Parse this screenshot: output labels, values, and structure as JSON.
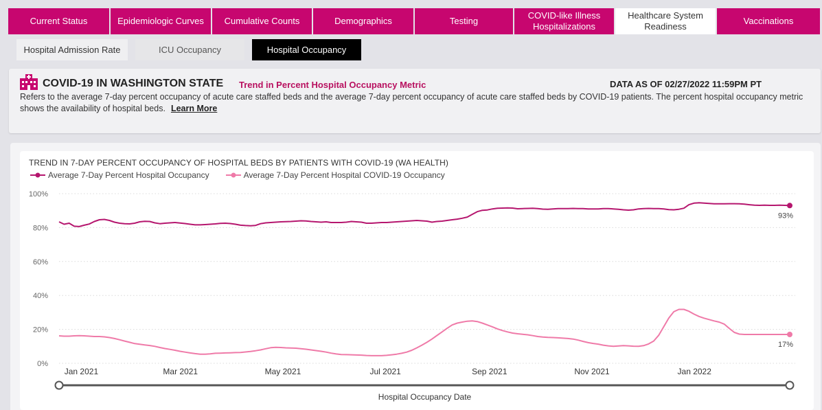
{
  "tabs": [
    {
      "label": "Current Status"
    },
    {
      "label": "Epidemiologic Curves"
    },
    {
      "label": "Cumulative Counts"
    },
    {
      "label": "Demographics"
    },
    {
      "label": "Testing"
    },
    {
      "label": "COVID-like Illness Hospitalizations"
    },
    {
      "label": "Healthcare System Readiness"
    },
    {
      "label": "Vaccinations"
    }
  ],
  "subtabs": [
    {
      "label": "Hospital Admission Rate"
    },
    {
      "label": "ICU Occupancy"
    },
    {
      "label": "Hospital Occupancy"
    }
  ],
  "info": {
    "title": "COVID-19 IN WASHINGTON STATE",
    "subtitle": "Trend in Percent Hospital Occupancy Metric",
    "data_as_of": "DATA AS OF 02/27/2022 11:59PM PT",
    "description": "Refers to the average 7-day percent occupancy of acute care staffed beds and the average 7-day percent occupancy of acute care staffed beds by COVID-19 patients. The percent hospital occupancy metric shows the availability of hospital beds.",
    "learn_more": "Learn More"
  },
  "colors": {
    "accent": "#c7066f",
    "series_total": "#b5166e",
    "series_covid": "#ef7aa8"
  },
  "chart_data": {
    "type": "line",
    "title": "TREND IN 7-DAY PERCENT OCCUPANCY OF HOSPITAL BEDS BY PATIENTS WITH COVID-19 (WA HEALTH)",
    "xlabel": "Hospital Occupancy Date",
    "ylabel": "",
    "ylim": [
      0,
      100
    ],
    "ytick_labels": [
      "0%",
      "20%",
      "40%",
      "60%",
      "80%",
      "100%"
    ],
    "yticks": [
      0,
      20,
      40,
      60,
      80,
      100
    ],
    "x_range_days": [
      0,
      435
    ],
    "xtick_labels": [
      "Jan 2021",
      "Mar 2021",
      "May 2021",
      "Jul 2021",
      "Sep 2021",
      "Nov 2021",
      "Jan 2022"
    ],
    "xticks_days": [
      10,
      69,
      130,
      191,
      253,
      314,
      375
    ],
    "end_labels": {
      "total": "93%",
      "covid": "17%"
    },
    "series": [
      {
        "name": "Average 7-Day Percent Hospital Occupancy",
        "key": "total",
        "x": [
          0,
          3,
          6,
          9,
          12,
          15,
          18,
          21,
          24,
          27,
          30,
          33,
          36,
          39,
          42,
          45,
          48,
          51,
          54,
          57,
          60,
          63,
          66,
          69,
          72,
          75,
          78,
          81,
          84,
          87,
          90,
          93,
          96,
          99,
          102,
          105,
          108,
          111,
          114,
          117,
          120,
          123,
          126,
          129,
          132,
          135,
          138,
          141,
          144,
          147,
          150,
          153,
          156,
          159,
          162,
          165,
          168,
          171,
          174,
          177,
          180,
          183,
          186,
          189,
          192,
          195,
          198,
          201,
          204,
          207,
          210,
          213,
          216,
          219,
          222,
          225,
          228,
          231,
          234,
          237,
          240,
          243,
          246,
          249,
          252,
          255,
          258,
          261,
          264,
          267,
          270,
          273,
          276,
          279,
          282,
          285,
          288,
          291,
          294,
          297,
          300,
          303,
          306,
          309,
          312,
          315,
          318,
          321,
          324,
          327,
          330,
          333,
          336,
          339,
          342,
          345,
          348,
          351,
          354,
          357,
          360,
          363,
          366,
          369,
          372,
          375,
          378,
          381,
          384,
          387,
          390,
          393,
          396,
          399,
          402,
          405,
          408,
          411,
          414,
          417,
          420,
          423,
          426,
          429,
          432,
          435
        ],
        "values": [
          83.4,
          82,
          82.6,
          80.8,
          80.6,
          81.4,
          82.1,
          83.6,
          84.6,
          84.8,
          84.2,
          83.2,
          82.6,
          82.3,
          82.2,
          82.6,
          83.4,
          83.7,
          83.6,
          82.8,
          82.3,
          82.6,
          82.8,
          83,
          82.7,
          82.4,
          82,
          81.6,
          81.6,
          81.8,
          82,
          82.2,
          82.5,
          82.6,
          82.4,
          82,
          81.4,
          81.2,
          81.1,
          81.3,
          82.3,
          82.8,
          83,
          83.2,
          83.4,
          83.5,
          83.6,
          83.8,
          84,
          83.9,
          83.6,
          83.4,
          83.2,
          83.4,
          83,
          83,
          83,
          83.2,
          83.6,
          83.4,
          83.2,
          82.6,
          82.6,
          82.8,
          83,
          83,
          83.2,
          83.4,
          83.6,
          83.8,
          84,
          84.2,
          84,
          83.8,
          83.2,
          83.6,
          83.8,
          84.2,
          84.6,
          85,
          85.5,
          86.2,
          87.8,
          89.4,
          90.2,
          90.4,
          91,
          91.4,
          91.5,
          91.6,
          91.5,
          91.1,
          91.2,
          91.3,
          91.4,
          91.2,
          90.9,
          90.8,
          91,
          91.2,
          91.2,
          91.2,
          91.3,
          91.2,
          91.2,
          91,
          91,
          91,
          91.2,
          91.2,
          91,
          90.8,
          90.5,
          90.3,
          90.5,
          91,
          91.2,
          91.3,
          91.2,
          91.2,
          91,
          90.6,
          90.5,
          90.8,
          91.4,
          93.5,
          94.4,
          94.6,
          94.4,
          94.2,
          94,
          94,
          94,
          94.1,
          94.1,
          94,
          93.8,
          93.5,
          93.2,
          93.1,
          93.2,
          93.1,
          93.1,
          93.2,
          93.1,
          93
        ]
      },
      {
        "name": "Average 7-Day Percent Hospital COVID-19 Occupancy",
        "key": "covid",
        "x": [
          0,
          3,
          6,
          9,
          12,
          15,
          18,
          21,
          24,
          27,
          30,
          33,
          36,
          39,
          42,
          45,
          48,
          51,
          54,
          57,
          60,
          63,
          66,
          69,
          72,
          75,
          78,
          81,
          84,
          87,
          90,
          93,
          96,
          99,
          102,
          105,
          108,
          111,
          114,
          117,
          120,
          123,
          126,
          129,
          132,
          135,
          138,
          141,
          144,
          147,
          150,
          153,
          156,
          159,
          162,
          165,
          168,
          171,
          174,
          177,
          180,
          183,
          186,
          189,
          192,
          195,
          198,
          201,
          204,
          207,
          210,
          213,
          216,
          219,
          222,
          225,
          228,
          231,
          234,
          237,
          240,
          243,
          246,
          249,
          252,
          255,
          258,
          261,
          264,
          267,
          270,
          273,
          276,
          279,
          282,
          285,
          288,
          291,
          294,
          297,
          300,
          303,
          306,
          309,
          312,
          315,
          318,
          321,
          324,
          327,
          330,
          333,
          336,
          339,
          342,
          345,
          348,
          351,
          354,
          357,
          360,
          363,
          366,
          369,
          372,
          375,
          378,
          381,
          384,
          387,
          390,
          393,
          396,
          399,
          402,
          405,
          408,
          411,
          414,
          417,
          420,
          423,
          426,
          429,
          432,
          435
        ],
        "values": [
          16.2,
          16,
          16,
          16.2,
          16.3,
          16.2,
          16,
          15.8,
          15.8,
          15.6,
          15.2,
          14.6,
          13.9,
          13.1,
          12.4,
          11.6,
          11.2,
          10.8,
          10.5,
          10,
          9.3,
          8.7,
          8.2,
          7.7,
          7.1,
          6.6,
          6.1,
          5.7,
          5.4,
          5.4,
          5.6,
          5.9,
          6,
          6.1,
          6.2,
          6.3,
          6.4,
          6.7,
          7,
          7.4,
          7.9,
          8.6,
          9.2,
          9.4,
          9.3,
          9.1,
          9,
          8.9,
          8.6,
          8.3,
          7.9,
          7.5,
          7.1,
          6.6,
          6,
          5.5,
          5.2,
          5.1,
          5,
          4.9,
          4.8,
          4.6,
          4.5,
          4.5,
          4.5,
          4.7,
          5,
          5.4,
          5.9,
          6.6,
          7.7,
          9.1,
          10.7,
          12.4,
          14.3,
          16.4,
          18.5,
          20.6,
          22.6,
          23.7,
          24.3,
          24.8,
          25,
          24.6,
          23.7,
          22.6,
          21.5,
          20.3,
          19.3,
          18.5,
          17.8,
          17.4,
          17.1,
          16.8,
          16.3,
          15.8,
          15.5,
          15.3,
          15.2,
          15,
          14.8,
          14.6,
          14.3,
          13.7,
          12.9,
          12.2,
          11.7,
          11.3,
          10.7,
          10.3,
          10,
          10.2,
          10.4,
          10.3,
          10.1,
          10,
          10.4,
          11.4,
          13.1,
          16.5,
          21.6,
          26.7,
          30.4,
          31.8,
          31.8,
          30.7,
          29,
          27.6,
          26.6,
          25.8,
          25,
          24.3,
          23.1,
          20.6,
          18.2,
          17.2,
          17,
          17,
          17,
          17,
          17,
          17,
          17,
          17,
          17,
          17
        ]
      }
    ]
  }
}
